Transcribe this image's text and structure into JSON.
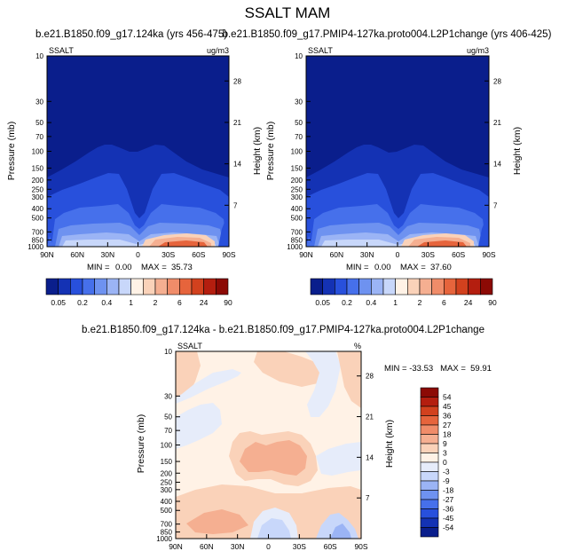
{
  "figure_title": "SSALT MAM",
  "chart_data": [
    {
      "type": "heatmap",
      "title": "b.e21.B1850.f09_g17.124ka (yrs 456-475)",
      "left_label": "SSALT",
      "right_label": "ug/m3",
      "ylabel": "Pressure (mb)",
      "ylabel_right": "Height (km)",
      "x_ticks": [
        "90N",
        "60N",
        "30N",
        "0",
        "30S",
        "60S",
        "90S"
      ],
      "y_ticks": [
        "10",
        "30",
        "50",
        "70",
        "100",
        "150",
        "200",
        "250",
        "300",
        "400",
        "500",
        "700",
        "850",
        "1000"
      ],
      "height_ticks": [
        "28",
        "21",
        "14",
        "7"
      ],
      "ylim": [
        1000,
        10
      ],
      "min_label": "MIN =",
      "min_value": "0.00",
      "max_label": "MAX =",
      "max_value": "35.73",
      "colorbar_labels": [
        "0.05",
        "0.2",
        "0.4",
        "1",
        "2",
        "6",
        "24",
        "90"
      ],
      "colorbar_colors": [
        "#0a1e8c",
        "#1432b4",
        "#2850dc",
        "#4670eb",
        "#6e92f0",
        "#9bb4f5",
        "#c8d7fa",
        "#fff2e6",
        "#fad2b9",
        "#f5af91",
        "#f08c69",
        "#e6643c",
        "#d2411e",
        "#b41e0f",
        "#8c0a05"
      ]
    },
    {
      "type": "heatmap",
      "title": "b.e21.B1850.f09_g17.PMIP4-127ka.proto004.L2P1change (yrs 406-425)",
      "left_label": "SSALT",
      "right_label": "ug/m3",
      "ylabel": "Pressure (mb)",
      "ylabel_right": "Height (km)",
      "x_ticks": [
        "90N",
        "60N",
        "30N",
        "0",
        "30S",
        "60S",
        "90S"
      ],
      "y_ticks": [
        "10",
        "30",
        "50",
        "70",
        "100",
        "150",
        "200",
        "250",
        "300",
        "400",
        "500",
        "700",
        "850",
        "1000"
      ],
      "height_ticks": [
        "28",
        "21",
        "14",
        "7"
      ],
      "ylim": [
        1000,
        10
      ],
      "min_label": "MIN =",
      "min_value": "0.00",
      "max_label": "MAX =",
      "max_value": "37.60",
      "colorbar_labels": [
        "0.05",
        "0.2",
        "0.4",
        "1",
        "2",
        "6",
        "24",
        "90"
      ],
      "colorbar_colors": [
        "#0a1e8c",
        "#1432b4",
        "#2850dc",
        "#4670eb",
        "#6e92f0",
        "#9bb4f5",
        "#c8d7fa",
        "#fff2e6",
        "#fad2b9",
        "#f5af91",
        "#f08c69",
        "#e6643c",
        "#d2411e",
        "#b41e0f",
        "#8c0a05"
      ]
    },
    {
      "type": "heatmap",
      "title": "b.e21.B1850.f09_g17.124ka - b.e21.B1850.f09_g17.PMIP4-127ka.proto004.L2P1change",
      "left_label": "SSALT",
      "right_label": "%",
      "ylabel": "Pressure (mb)",
      "ylabel_right": "Height (km)",
      "x_ticks": [
        "90N",
        "60N",
        "30N",
        "0",
        "30S",
        "60S",
        "90S"
      ],
      "y_ticks": [
        "10",
        "30",
        "50",
        "70",
        "100",
        "150",
        "200",
        "250",
        "300",
        "400",
        "500",
        "700",
        "850",
        "1000"
      ],
      "height_ticks": [
        "28",
        "21",
        "14",
        "7"
      ],
      "ylim": [
        1000,
        10
      ],
      "stats_text": "MIN = -33.53   MAX =  59.91",
      "colorbar_labels": [
        "54",
        "45",
        "36",
        "27",
        "18",
        "9",
        "3",
        "0",
        "-3",
        "-9",
        "-18",
        "-27",
        "-36",
        "-45",
        "-54"
      ],
      "colorbar_colors": [
        "#8c0a05",
        "#b41e0f",
        "#d2411e",
        "#e6643c",
        "#f08c69",
        "#f5af91",
        "#fad2b9",
        "#fff2e6",
        "#e6ecfa",
        "#c8d7fa",
        "#9bb4f5",
        "#6e92f0",
        "#4670eb",
        "#2850dc",
        "#1432b4",
        "#0a1e8c"
      ]
    }
  ]
}
